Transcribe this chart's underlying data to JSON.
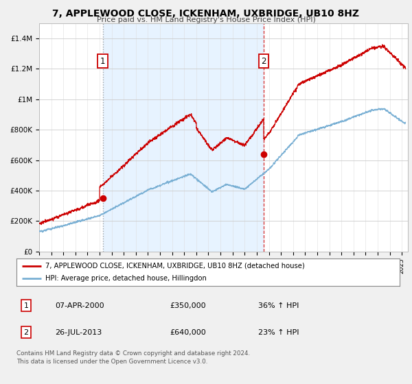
{
  "title": "7, APPLEWOOD CLOSE, ICKENHAM, UXBRIDGE, UB10 8HZ",
  "subtitle": "Price paid vs. HM Land Registry's House Price Index (HPI)",
  "red_color": "#cc0000",
  "blue_color": "#7ab0d4",
  "shade_color": "#ddeeff",
  "purchase1_x": 2000.27,
  "purchase1_y": 350000,
  "purchase2_x": 2013.57,
  "purchase2_y": 640000,
  "legend_line1": "7, APPLEWOOD CLOSE, ICKENHAM, UXBRIDGE, UB10 8HZ (detached house)",
  "legend_line2": "HPI: Average price, detached house, Hillingdon",
  "table_row1_num": "1",
  "table_row1_date": "07-APR-2000",
  "table_row1_price": "£350,000",
  "table_row1_hpi": "36% ↑ HPI",
  "table_row2_num": "2",
  "table_row2_date": "26-JUL-2013",
  "table_row2_price": "£640,000",
  "table_row2_hpi": "23% ↑ HPI",
  "footer": "Contains HM Land Registry data © Crown copyright and database right 2024.\nThis data is licensed under the Open Government Licence v3.0.",
  "yticks": [
    0,
    200000,
    400000,
    600000,
    800000,
    1000000,
    1200000,
    1400000
  ],
  "ytick_labels": [
    "£0",
    "£200K",
    "£400K",
    "£600K",
    "£800K",
    "£1M",
    "£1.2M",
    "£1.4M"
  ],
  "xlim_start": 1995.0,
  "xlim_end": 2025.5,
  "ylim_bottom": 0,
  "ylim_top": 1500000,
  "background_color": "#f0f0f0",
  "plot_bg_color": "#ffffff"
}
